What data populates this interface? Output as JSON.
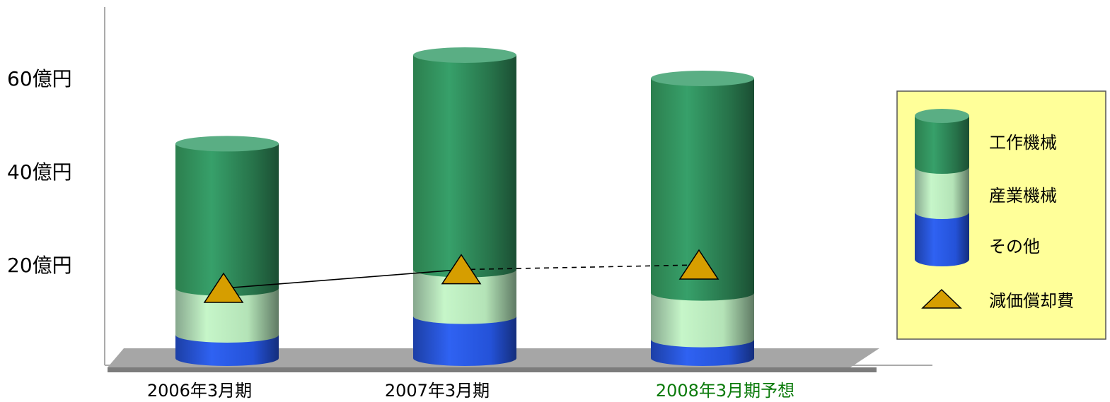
{
  "chart_data": {
    "type": "bar",
    "stacked": true,
    "categories": [
      "2006年3月期",
      "2007年3月期",
      "2008年3月期予想"
    ],
    "category_colors": [
      "#000000",
      "#000000",
      "#0a7a0a"
    ],
    "y_ticks": [
      {
        "value": 20,
        "label": "20億円"
      },
      {
        "value": 40,
        "label": "40億円"
      },
      {
        "value": 60,
        "label": "60億円"
      }
    ],
    "ylim": [
      0,
      68
    ],
    "series": [
      {
        "name": "その他",
        "values": [
          5,
          9,
          4
        ],
        "color": "#2a5ce6"
      },
      {
        "name": "産業機械",
        "values": [
          10,
          10,
          10
        ],
        "color": "#c3f2c6"
      },
      {
        "name": "工作機械",
        "values": [
          31,
          46,
          46
        ],
        "color": "#2e8b57"
      }
    ],
    "line_series": {
      "name": "減価償却費",
      "values": [
        15,
        19,
        20
      ],
      "marker": "triangle",
      "color": "#d69e00",
      "dashed_segments": [
        1
      ]
    },
    "legend": {
      "position": "right",
      "background": "#ffff99",
      "items": [
        "工作機械",
        "産業機械",
        "その他",
        "減価償却費"
      ]
    },
    "grid": false
  }
}
